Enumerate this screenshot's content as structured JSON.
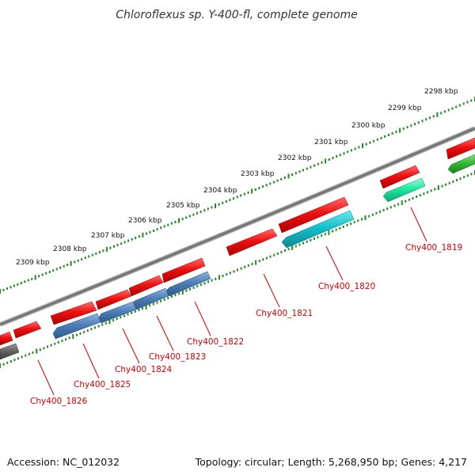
{
  "title": "Chloroflexus sp. Y-400-fl, complete genome",
  "accession": "Accession: NC_012032",
  "genome_stats": "Topology: circular; Length: 5,268,950 bp; Genes: 4,217",
  "scale_labels": [
    "2298 kbp",
    "2299 kbp",
    "2300 kbp",
    "2301 kbp",
    "2302 kbp",
    "2303 kbp",
    "2304 kbp",
    "2305 kbp",
    "2306 kbp",
    "2307 kbp",
    "2308 kbp",
    "2309 kbp"
  ],
  "gene_labels": [
    "Chy400_1819",
    "Chy400_1820",
    "Chy400_1821",
    "Chy400_1822",
    "Chy400_1823",
    "Chy400_1824",
    "Chy400_1825",
    "Chy400_1826"
  ],
  "colors": {
    "forward_cds": "#ee1111",
    "reverse_cds": "#4f7fb8",
    "cyan_feature": "#13bfcc",
    "teal_feature": "#1de8a0",
    "green_feature": "#33bb33",
    "gray_feature": "#666666",
    "backbone": "#808080",
    "ticks": "#228822",
    "label_text": "#cc0000"
  }
}
